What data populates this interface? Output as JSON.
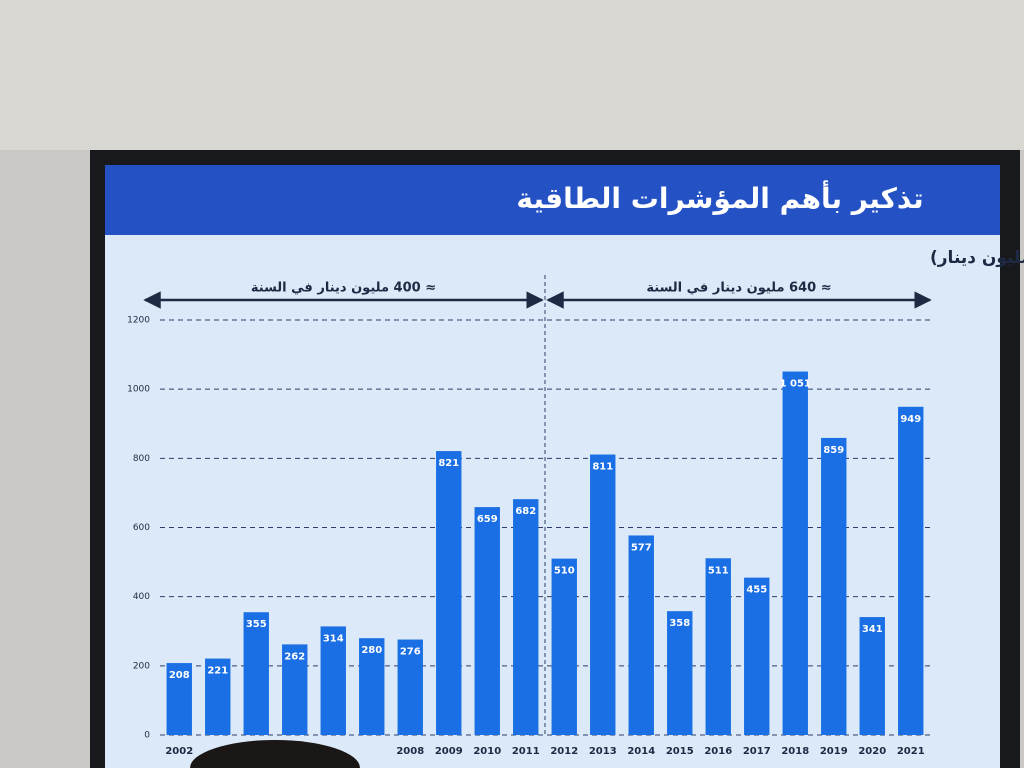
{
  "chart_data": {
    "type": "bar",
    "title": "تذكير بأهم المؤشرات الطاقية",
    "subtitle": "تطوّر الاستثمارات في المنظومة الكهربائية (مليون دينار)",
    "annotations": [
      "≈ 400 مليون دينار في السنة",
      "≈ 640 مليون دينار في السنة"
    ],
    "categories": [
      "2002",
      null,
      null,
      null,
      null,
      null,
      "2008",
      "2009",
      "2010",
      "2011",
      "2012",
      "2013",
      "2014",
      "2015",
      "2016",
      "2017",
      "2018",
      "2019",
      "2020",
      "2021"
    ],
    "values": [
      208,
      221,
      355,
      262,
      314,
      280,
      276,
      821,
      659,
      682,
      510,
      811,
      577,
      358,
      511,
      455,
      1051,
      859,
      341,
      949
    ],
    "value_labels": [
      "208",
      "221",
      "355",
      "262",
      "314",
      "280",
      "276",
      "821",
      "659",
      "682",
      "510",
      "811",
      "577",
      "358",
      "511",
      "455",
      "1 051",
      "859",
      "341",
      "949"
    ],
    "color": "#1b6fe4",
    "ylim": [
      0,
      1200
    ],
    "yticks": [
      0,
      200,
      400,
      600,
      800,
      1000,
      1200
    ],
    "grid": true
  }
}
